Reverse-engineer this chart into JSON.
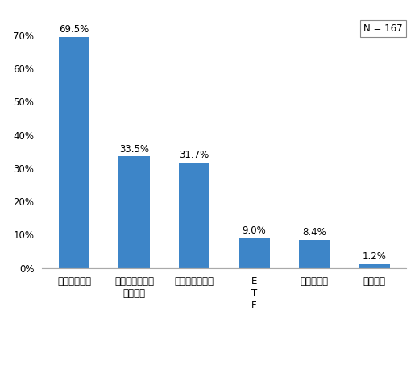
{
  "categories": [
    "株式投賄信託",
    "外国で作られた\n投賄信託",
    "公社債投賄信託",
    "E\nT\nF",
    "不動産投信",
    "種類不明"
  ],
  "values": [
    69.5,
    33.5,
    31.7,
    9.0,
    8.4,
    1.2
  ],
  "labels": [
    "69.5%",
    "33.5%",
    "31.7%",
    "9.0%",
    "8.4%",
    "1.2%"
  ],
  "bar_color": "#3d85c8",
  "background_color": "#ffffff",
  "n_label": "N = 167",
  "ylim": [
    0,
    75
  ],
  "yticks": [
    0,
    10,
    20,
    30,
    40,
    50,
    60,
    70
  ],
  "ytick_labels": [
    "0%",
    "10%",
    "20%",
    "30%",
    "40%",
    "50%",
    "60%",
    "70%"
  ],
  "label_fontsize": 8.5,
  "tick_fontsize": 8.5,
  "n_fontsize": 8.5,
  "figsize": [
    5.2,
    4.62
  ],
  "dpi": 100
}
